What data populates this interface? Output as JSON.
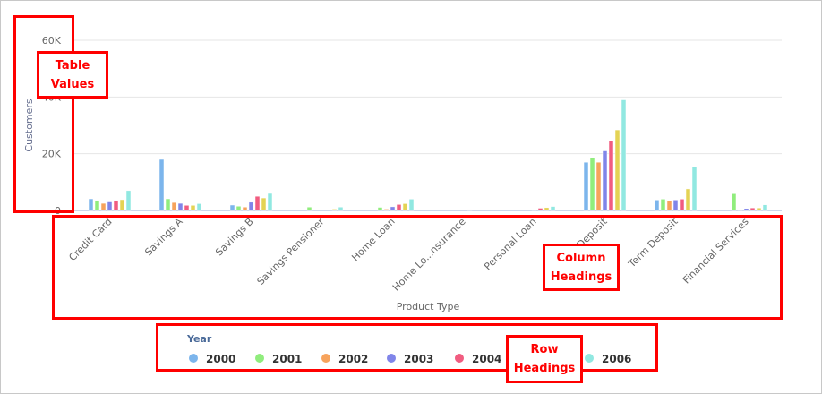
{
  "chart_data": {
    "type": "bar",
    "title": "",
    "xlabel": "Product Type",
    "ylabel": "Customers",
    "ylim": [
      0,
      60000
    ],
    "yticks": [
      "0",
      "20K",
      "40K",
      "60K"
    ],
    "ytick_values": [
      0,
      20000,
      40000,
      60000
    ],
    "grid": true,
    "legend": {
      "title": "Year",
      "position": "bottom"
    },
    "categories": [
      "Credit Card",
      "Savings A",
      "Savings B",
      "Savings Pensioner",
      "Home Loan",
      "Home Lo...nsurance",
      "Personal Loan",
      "Deposit",
      "Term Deposit",
      "Financial Services"
    ],
    "series": [
      {
        "name": "2000",
        "color": "#7cb5ec",
        "values": [
          4100,
          18000,
          1900,
          0,
          0,
          0,
          0,
          17000,
          3700,
          0
        ]
      },
      {
        "name": "2001",
        "color": "#90ed7d",
        "values": [
          3500,
          4100,
          1500,
          1200,
          1100,
          0,
          0,
          18700,
          4000,
          5900
        ]
      },
      {
        "name": "2002",
        "color": "#f7a35c",
        "values": [
          2500,
          2800,
          1200,
          0,
          500,
          0,
          0,
          17000,
          3400,
          300
        ]
      },
      {
        "name": "2003",
        "color": "#8085e9",
        "values": [
          3000,
          2500,
          2900,
          0,
          1300,
          0,
          300,
          21000,
          3700,
          700
        ]
      },
      {
        "name": "2004",
        "color": "#f15c80",
        "values": [
          3500,
          1800,
          5000,
          0,
          2100,
          400,
          800,
          24600,
          4000,
          900
        ]
      },
      {
        "name": "2005",
        "color": "#e4d354",
        "values": [
          3800,
          1800,
          4400,
          500,
          2400,
          0,
          1000,
          28400,
          7600,
          900
        ]
      },
      {
        "name": "2006",
        "color": "#91e8e1",
        "values": [
          7000,
          2400,
          6000,
          1200,
          4000,
          0,
          1400,
          39000,
          15400,
          2000
        ]
      }
    ]
  },
  "annotations": {
    "table_values": "Table Values",
    "column_headings": "Column Headings",
    "row_headings": "Row Headings"
  }
}
